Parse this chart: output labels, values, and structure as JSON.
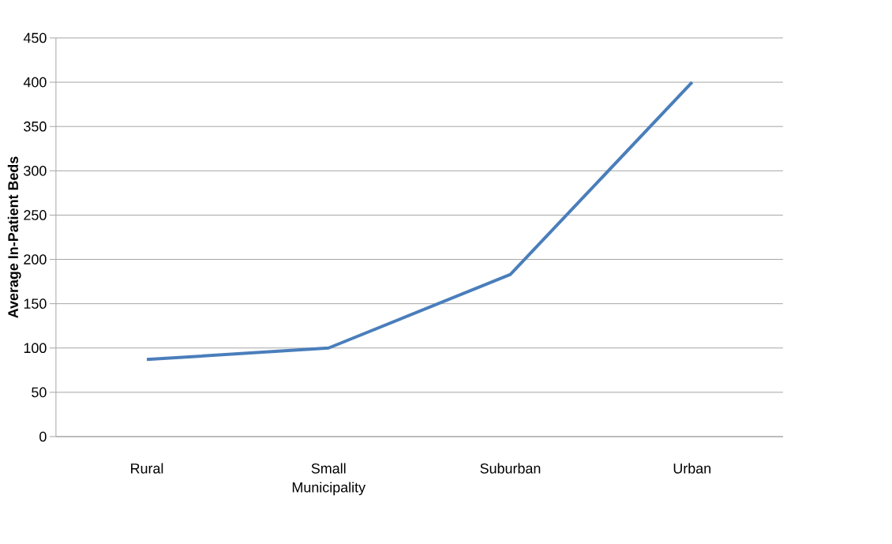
{
  "chart_data": {
    "type": "line",
    "ylabel": "Average In-Patient Beds",
    "categories": [
      "Rural",
      "Small Municipality",
      "Suburban",
      "Urban"
    ],
    "series": [
      {
        "color": "#4a7ebb",
        "values": [
          87,
          100,
          183,
          400
        ]
      }
    ],
    "ylim": [
      0,
      450
    ],
    "yticks": [
      0,
      50,
      100,
      150,
      200,
      250,
      300,
      350,
      400,
      450
    ],
    "grid": "y",
    "marker": "none",
    "line_style": "solid"
  }
}
